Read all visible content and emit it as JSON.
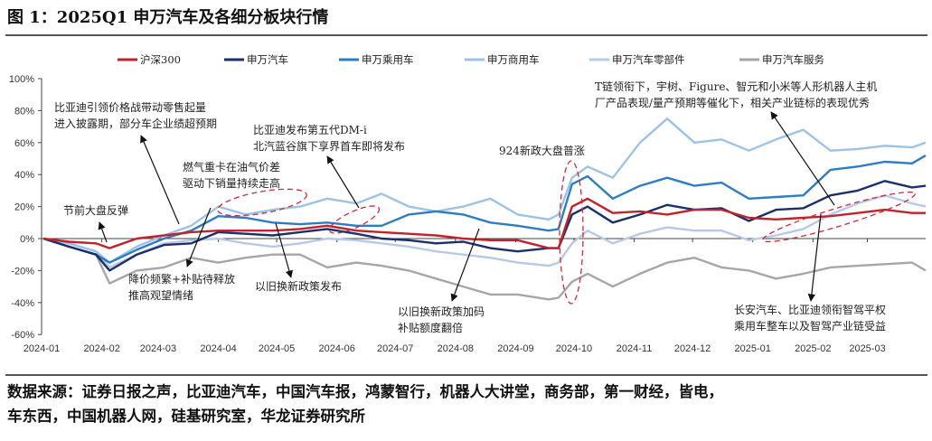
{
  "title": "图 1：2025Q1 申万汽车及各细分板块行情",
  "source_lines": [
    "数据来源：证券日报之声，比亚迪汽车，中国汽车报，鸿蒙智行，机器人大讲堂，商务部，第一财经，皆电，",
    "车东西，中国机器人网，硅基研究室，华龙证券研究所"
  ],
  "chart_data": {
    "type": "line",
    "title": "",
    "xlabel": "",
    "ylabel": "",
    "ylim": [
      -60,
      100
    ],
    "yticks": [
      -60,
      -40,
      -20,
      0,
      20,
      40,
      60,
      80,
      100
    ],
    "ytick_labels": [
      "-60%",
      "-40%",
      "-20%",
      "0%",
      "20%",
      "40%",
      "60%",
      "80%",
      "100%"
    ],
    "xticks": [
      "2024-01-01",
      "2024-02-01",
      "2024-03-01",
      "2024-04-01",
      "2024-05-01",
      "2024-06-01",
      "2024-07-01",
      "2024-08-01",
      "2024-09-01",
      "2024-10-01",
      "2024-11-01",
      "2024-12-01",
      "2025-01-01",
      "2025-02-01",
      "2025-03-01"
    ],
    "xtick_labels": [
      "2024-01",
      "2024-02",
      "2024-03",
      "2024-04",
      "2024-05",
      "2024-06",
      "2024-07",
      "2024-08",
      "2024-09",
      "2024-10",
      "2024-11",
      "2024-12",
      "2025-01",
      "2025-02",
      "2025-03"
    ],
    "xlim": [
      "2024-01-01",
      "2025-03-31"
    ],
    "grid": false,
    "legend_position": "top",
    "x": [
      "2024-01-02",
      "2024-01-15",
      "2024-01-29",
      "2024-02-05",
      "2024-02-19",
      "2024-03-04",
      "2024-03-18",
      "2024-04-01",
      "2024-04-15",
      "2024-04-29",
      "2024-05-13",
      "2024-05-27",
      "2024-06-11",
      "2024-06-24",
      "2024-07-08",
      "2024-07-22",
      "2024-08-05",
      "2024-08-19",
      "2024-09-02",
      "2024-09-18",
      "2024-09-23",
      "2024-09-30",
      "2024-10-08",
      "2024-10-21",
      "2024-11-04",
      "2024-11-18",
      "2024-12-02",
      "2024-12-16",
      "2024-12-30",
      "2025-01-13",
      "2025-01-27",
      "2025-02-10",
      "2025-02-24",
      "2025-03-10",
      "2025-03-24",
      "2025-03-31"
    ],
    "series": [
      {
        "name": "沪深300",
        "color": "#c0232b",
        "values": [
          0,
          -2,
          -3,
          -6,
          0,
          2,
          4,
          5,
          5,
          5,
          6,
          8,
          5,
          4,
          3,
          2,
          0,
          -1,
          -1,
          -6,
          -6,
          20,
          25,
          16,
          17,
          15,
          18,
          18,
          13,
          12,
          13,
          14,
          16,
          18,
          16,
          16
        ]
      },
      {
        "name": "申万汽车",
        "color": "#1b2f6b",
        "values": [
          0,
          -5,
          -10,
          -20,
          -10,
          -4,
          -3,
          4,
          3,
          2,
          4,
          6,
          3,
          0,
          -1,
          -3,
          -2,
          -6,
          -8,
          -6,
          -6,
          15,
          20,
          10,
          15,
          21,
          18,
          19,
          11,
          18,
          19,
          27,
          30,
          36,
          32,
          33
        ]
      },
      {
        "name": "申万乘用车",
        "color": "#2e7dc1",
        "values": [
          0,
          -5,
          -10,
          -15,
          -7,
          0,
          5,
          14,
          13,
          10,
          9,
          10,
          8,
          8,
          15,
          17,
          15,
          10,
          8,
          5,
          6,
          34,
          39,
          25,
          33,
          38,
          33,
          35,
          25,
          26,
          27,
          43,
          45,
          48,
          47,
          52
        ]
      },
      {
        "name": "申万商用车",
        "color": "#9cc2e5",
        "values": [
          0,
          -3,
          -8,
          -15,
          -5,
          2,
          8,
          20,
          15,
          18,
          20,
          25,
          22,
          28,
          20,
          17,
          20,
          25,
          15,
          12,
          15,
          38,
          45,
          38,
          60,
          75,
          60,
          62,
          55,
          62,
          68,
          55,
          56,
          58,
          57,
          60
        ]
      },
      {
        "name": "申万汽车零部件",
        "color": "#b7c9e6",
        "values": [
          0,
          -3,
          -8,
          -18,
          -10,
          -3,
          -1,
          0,
          -3,
          -5,
          -3,
          0,
          -1,
          -3,
          -5,
          -8,
          -10,
          -12,
          -15,
          -17,
          -15,
          -3,
          5,
          -3,
          3,
          7,
          5,
          5,
          -1,
          2,
          6,
          15,
          22,
          27,
          22,
          20
        ]
      },
      {
        "name": "申万汽车服务",
        "color": "#a6a6a6",
        "values": [
          0,
          -5,
          -10,
          -28,
          -20,
          -18,
          -12,
          -15,
          -12,
          -10,
          -10,
          -18,
          -15,
          -17,
          -20,
          -25,
          -30,
          -35,
          -35,
          -38,
          -37,
          -27,
          -22,
          -30,
          -22,
          -15,
          -12,
          -18,
          -20,
          -25,
          -22,
          -18,
          -17,
          -16,
          -15,
          -20
        ]
      }
    ],
    "annotations": [
      {
        "lines": [
          "比亚迪引领价格战带动零售起量",
          "进入披露期，部分车企业绩超预期"
        ]
      },
      {
        "lines": [
          "比亚迪发布第五代DM-i",
          "北汽蓝谷旗下享界首车即将发布"
        ]
      },
      {
        "lines": [
          "燃气重卡在油气价差",
          "驱动下销量持续走高"
        ]
      },
      {
        "lines": [
          "节前大盘反弹"
        ]
      },
      {
        "lines": [
          "降价频繁+补贴待释放",
          "推高观望情绪"
        ]
      },
      {
        "lines": [
          "以旧换新政策发布"
        ]
      },
      {
        "lines": [
          "以旧换新政策加码",
          "补贴额度翻倍"
        ]
      },
      {
        "lines": [
          "924新政大盘普涨"
        ]
      },
      {
        "lines": [
          "T链领衔下，宇树、Figure、智元和小米等人形机器人主机",
          "厂产品表现/量产预期等催化下，相关产业链标的表现优秀"
        ]
      },
      {
        "lines": [
          "长安汽车、比亚迪领衔智驾平权",
          "乘用车整车以及智驾产业链受益"
        ]
      }
    ]
  }
}
